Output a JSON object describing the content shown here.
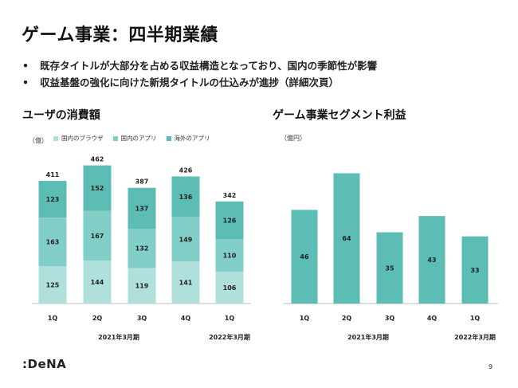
{
  "slide": {
    "title": "ゲーム事業：四半期業績",
    "bullets": [
      "既存タイトルが大部分を占める収益構造となっており、国内の季節性が影響",
      "収益基盤の強化に向けた新規タイトルの仕込みが進捗（詳細次頁）"
    ],
    "bullet_marker": "•",
    "logo_text": ":DeNA",
    "page_number": "9"
  },
  "colors": {
    "browser": "#afe0dc",
    "domestic_app": "#82cfc8",
    "overseas_app": "#5bbdb4",
    "segment_bar": "#5bbdb4",
    "axis": "#bfbfbf"
  },
  "chart_data": [
    {
      "type": "bar",
      "stacked": true,
      "title": "ユーザの消費額",
      "unit": "（億）",
      "categories": [
        "1Q",
        "2Q",
        "3Q",
        "4Q",
        "1Q"
      ],
      "period_labels": [
        "2021年3月期",
        "2022年3月期"
      ],
      "series": [
        {
          "name": "国内のブラウザ",
          "values": [
            125,
            144,
            119,
            141,
            106
          ],
          "color_key": "browser"
        },
        {
          "name": "国内のアプリ",
          "values": [
            163,
            167,
            132,
            149,
            110
          ],
          "color_key": "domestic_app"
        },
        {
          "name": "海外のアプリ",
          "values": [
            123,
            152,
            137,
            136,
            126
          ],
          "color_key": "overseas_app"
        }
      ],
      "totals": [
        411,
        462,
        387,
        426,
        342
      ]
    },
    {
      "type": "bar",
      "title": "ゲーム事業セグメント利益",
      "unit": "（億円）",
      "categories": [
        "1Q",
        "2Q",
        "3Q",
        "4Q",
        "1Q"
      ],
      "period_labels": [
        "2021年3月期",
        "2022年3月期"
      ],
      "values": [
        46,
        64,
        35,
        43,
        33
      ]
    }
  ]
}
